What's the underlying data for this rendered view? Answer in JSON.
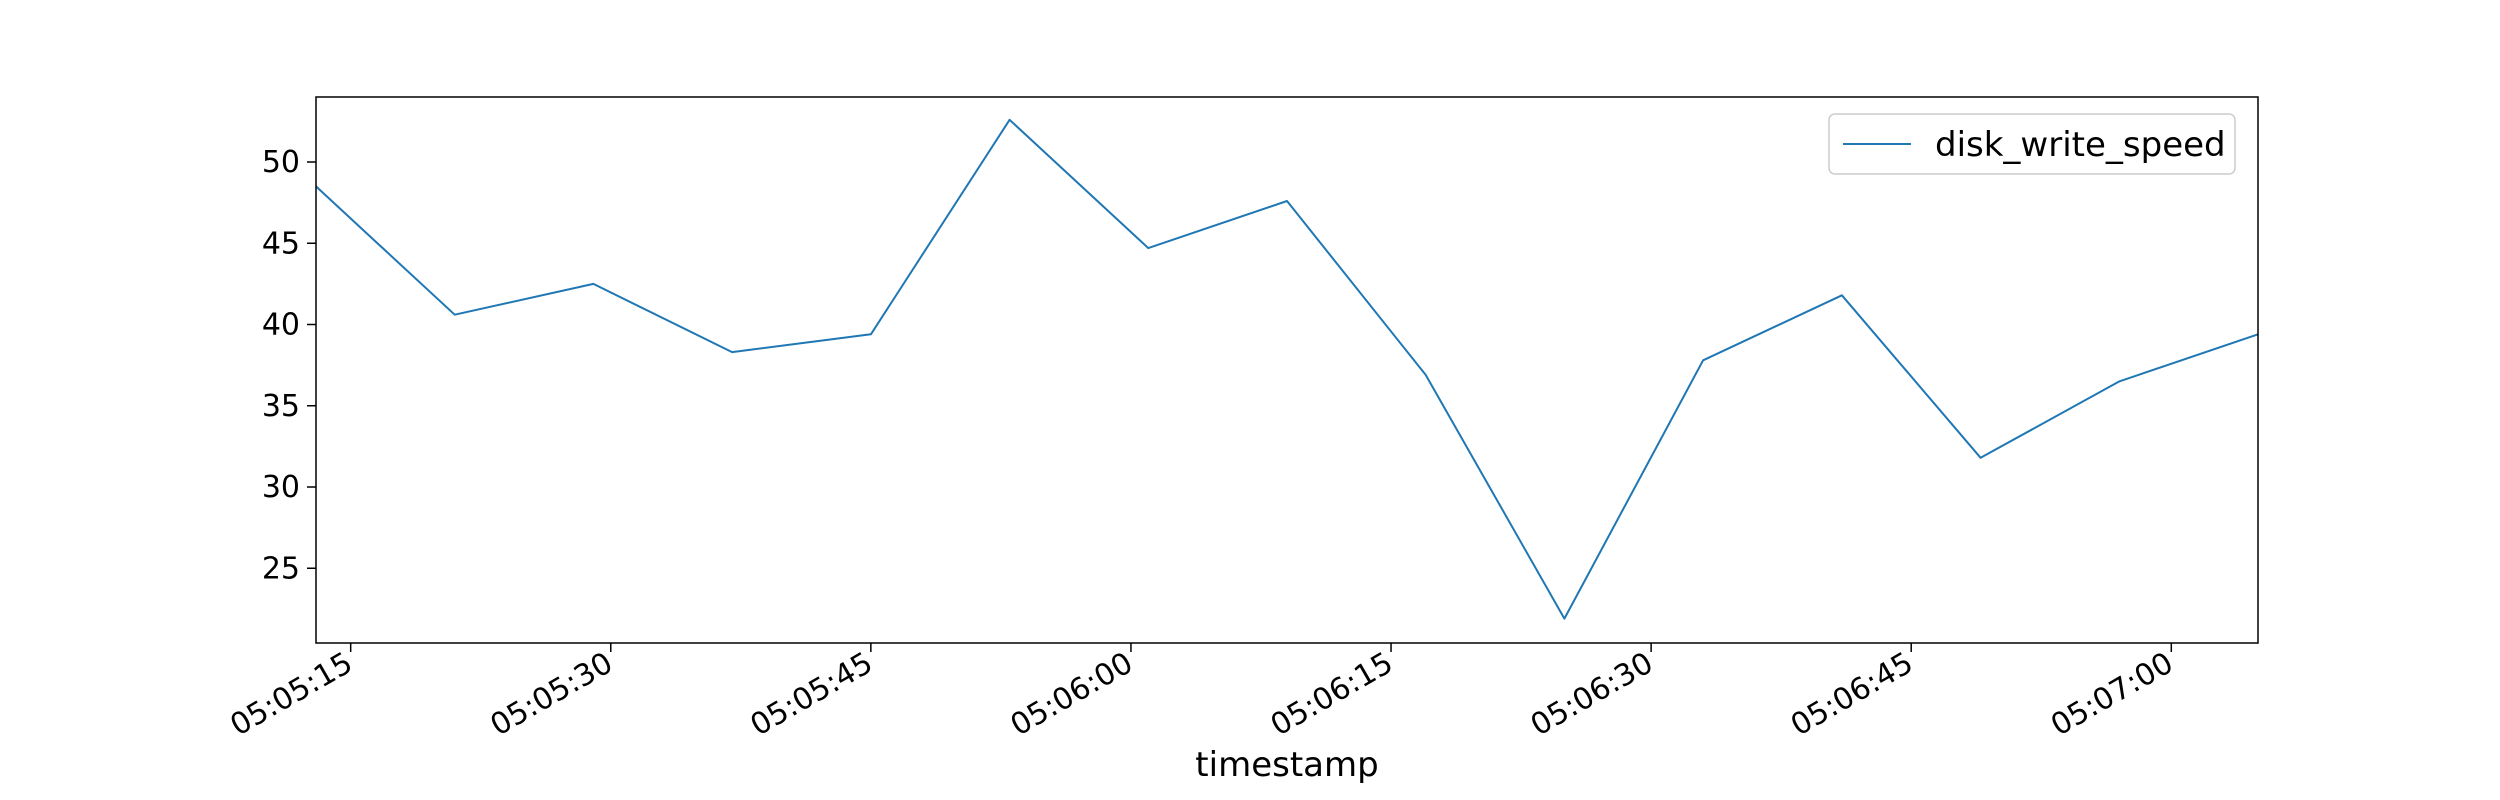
{
  "chart_data": {
    "type": "line",
    "title": "",
    "xlabel": "timestamp",
    "ylabel": "",
    "x": [
      "05:05:13",
      "05:05:21",
      "05:05:29",
      "05:05:37",
      "05:05:45",
      "05:05:53",
      "05:06:01",
      "05:06:09",
      "05:06:17",
      "05:06:25",
      "05:06:33",
      "05:06:41",
      "05:06:49",
      "05:06:57",
      "05:07:05"
    ],
    "xlim": [
      "05:05:13",
      "05:07:05"
    ],
    "xticks": [
      "05:05:15",
      "05:05:30",
      "05:05:45",
      "05:06:00",
      "05:06:15",
      "05:06:30",
      "05:06:45",
      "05:07:00"
    ],
    "ylim": [
      20.4,
      54.0
    ],
    "yticks": [
      25,
      30,
      35,
      40,
      45,
      50
    ],
    "series": [
      {
        "name": "disk_write_speed",
        "color": "#1f77b4",
        "values": [
          48.5,
          40.6,
          42.5,
          38.3,
          39.4,
          52.6,
          44.7,
          47.6,
          36.9,
          21.9,
          37.8,
          41.8,
          31.8,
          36.5,
          39.4
        ]
      }
    ],
    "legend": {
      "position": "top-right",
      "entries": [
        "disk_write_speed"
      ]
    },
    "grid": false
  }
}
